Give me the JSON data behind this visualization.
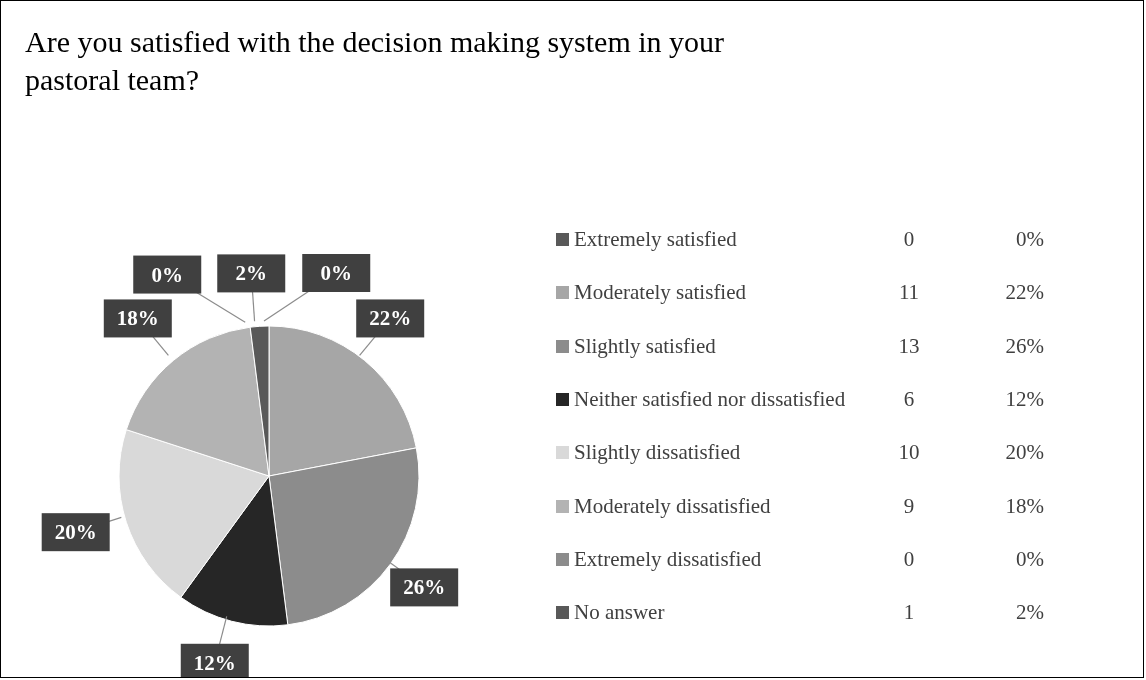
{
  "chart_data": {
    "type": "pie",
    "title": "Are you satisfied with the decision making system in your pastoral team?",
    "categories": [
      "Extremely satisfied",
      "Moderately satisfied",
      "Slightly satisfied",
      "Neither satisfied nor dissatisfied",
      "Slightly dissatisfied",
      "Moderately dissatisfied",
      "Extremely dissatisfied",
      "No answer"
    ],
    "values": [
      0,
      22,
      26,
      12,
      20,
      18,
      0,
      2
    ],
    "annotations": [
      "0",
      "11",
      "13",
      "6",
      "10",
      "9",
      "0",
      "1"
    ],
    "value_labels": [
      "0%",
      "22%",
      "26%",
      "12%",
      "20%",
      "18%",
      "0%",
      "2%"
    ],
    "colors": [
      "#595959",
      "#a6a6a6",
      "#8c8c8c",
      "#262626",
      "#d9d9d9",
      "#b3b3b3",
      "#8c8c8c",
      "#595959"
    ],
    "legend": "right"
  }
}
